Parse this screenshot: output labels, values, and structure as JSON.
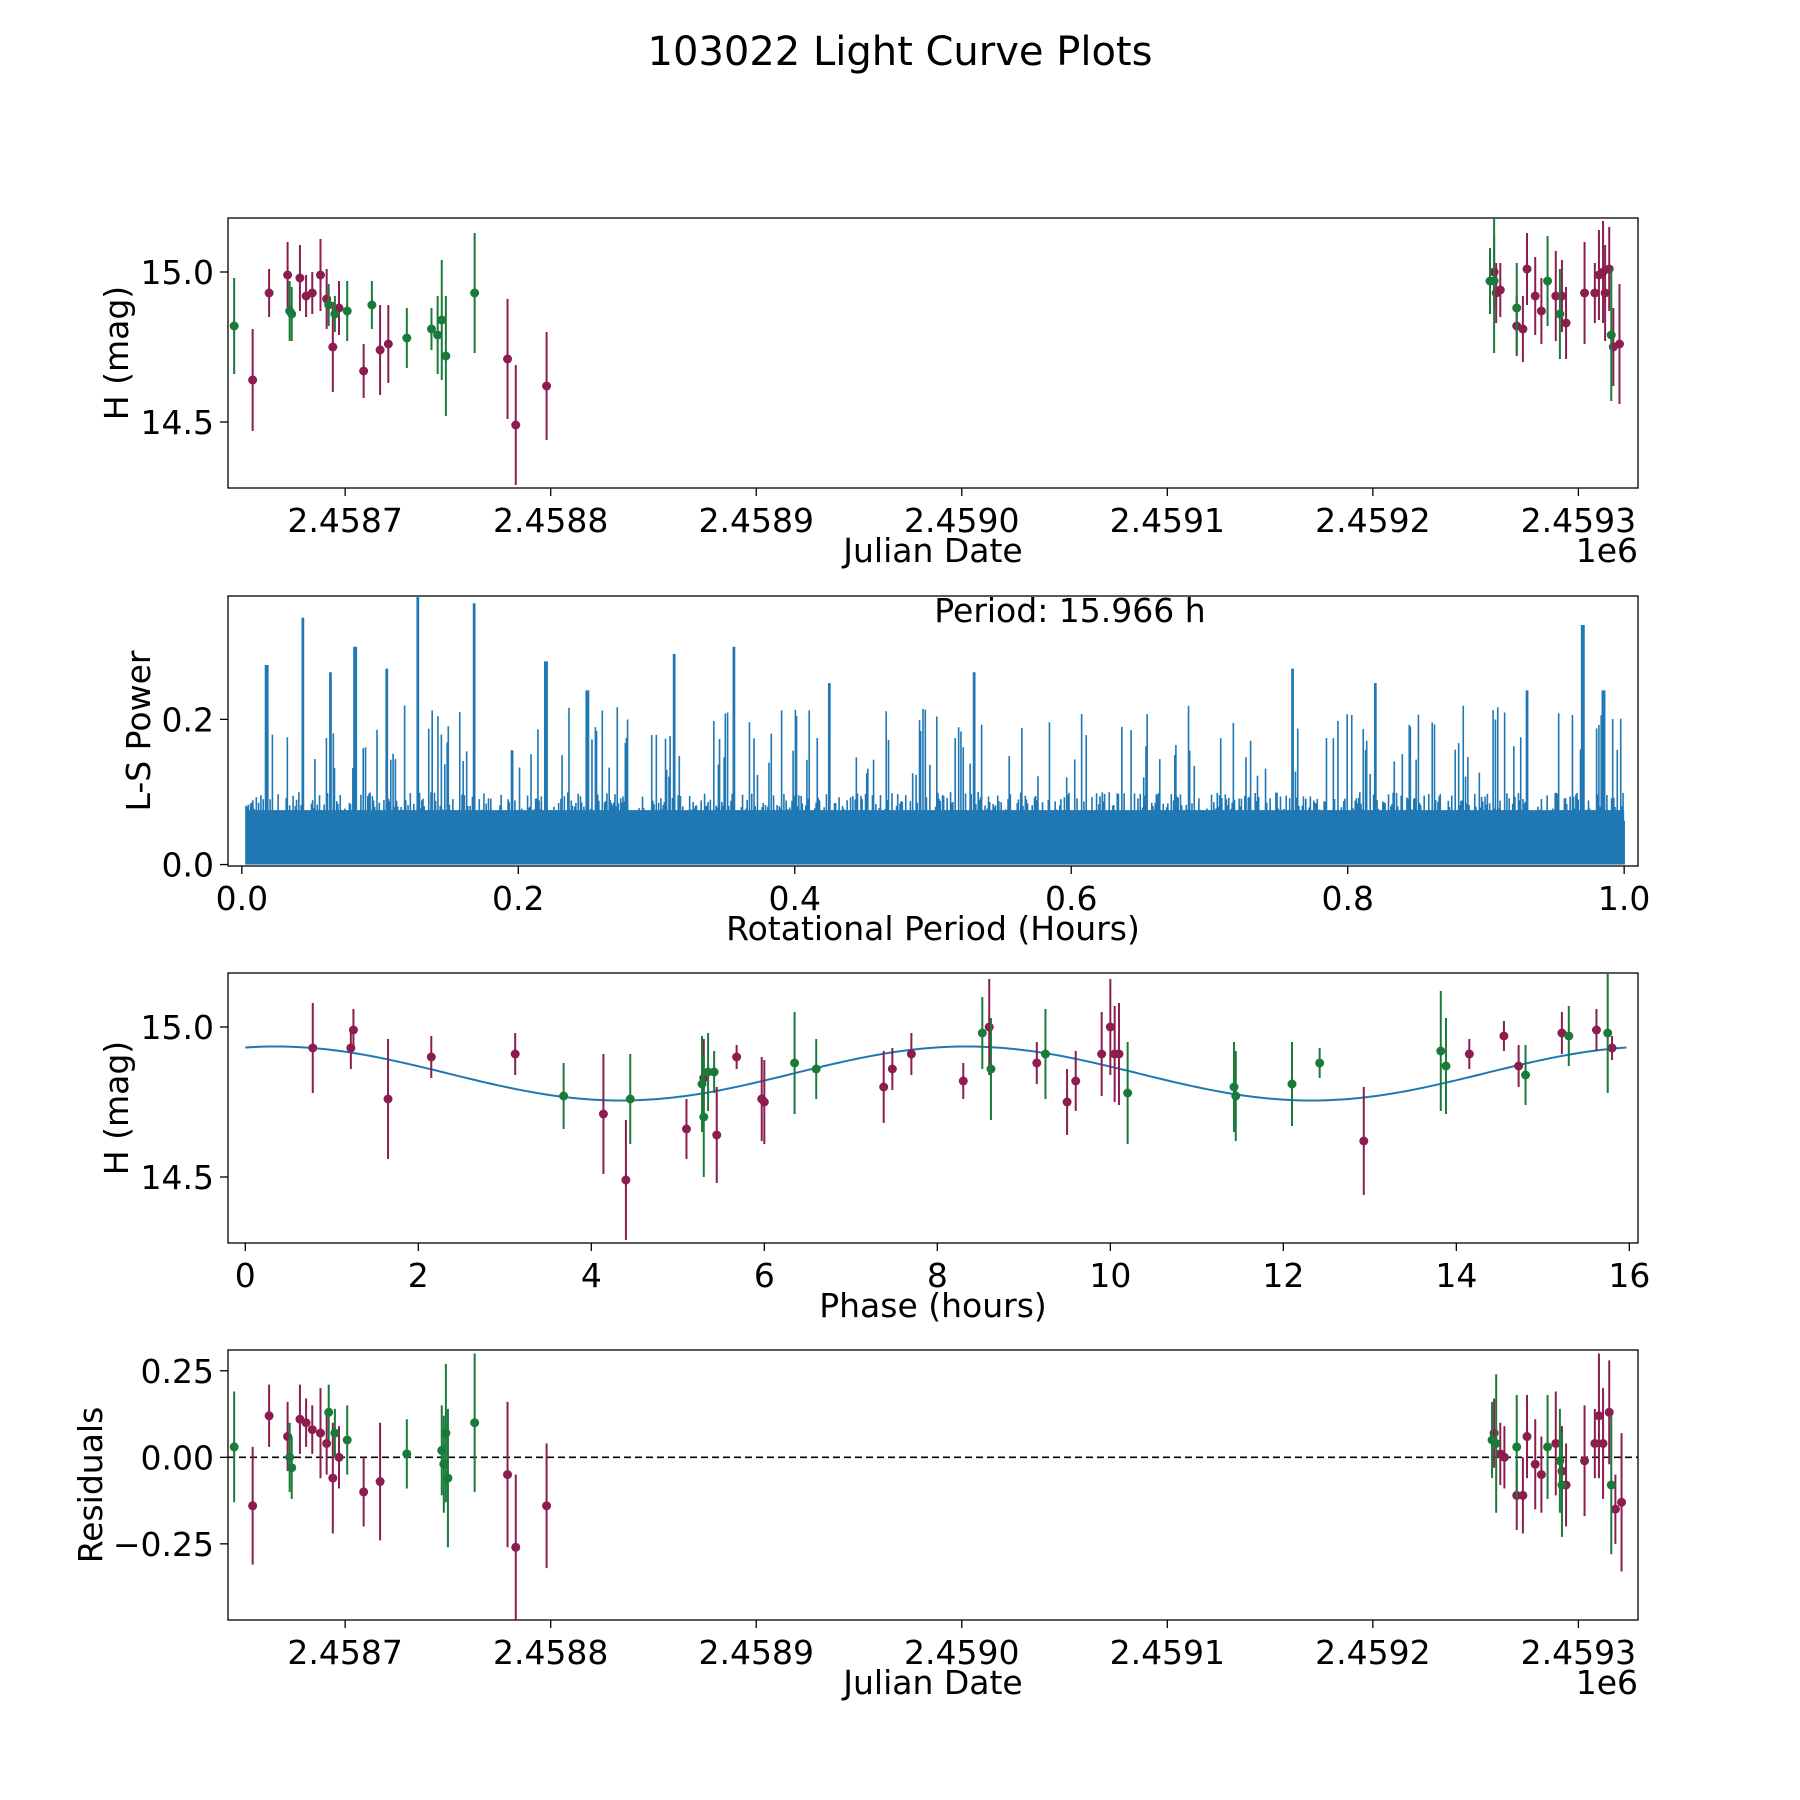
{
  "figure": {
    "title": "103022 Light Curve Plots",
    "colors": {
      "purple": "#8b1d4f",
      "green": "#1a7a3a",
      "blue": "#1f77b4",
      "dashed": "#000000"
    }
  },
  "chart_data": [
    {
      "id": "lightcurve",
      "type": "scatter",
      "xlabel": "Julian Date",
      "ylabel": "H (mag)",
      "x_offset_label": "1e6",
      "xlim": [
        2.458643,
        2.459329
      ],
      "ylim": [
        14.28,
        15.18
      ],
      "xticks": [
        2.4587,
        2.4588,
        2.4589,
        2.459,
        2.4591,
        2.4592,
        2.4593
      ],
      "xtick_labels": [
        "2.4587",
        "2.4588",
        "2.4589",
        "2.4590",
        "2.4591",
        "2.4592",
        "2.4593"
      ],
      "yticks": [
        14.5,
        15.0
      ],
      "ytick_labels": [
        "14.5",
        "15.0"
      ],
      "series": [
        {
          "name": "purple",
          "color": "#8b1d4f",
          "points": [
            [
              2.458655,
              14.64,
              0.17
            ],
            [
              2.458663,
              14.93,
              0.08
            ],
            [
              2.458672,
              14.99,
              0.11
            ],
            [
              2.458678,
              14.98,
              0.11
            ],
            [
              2.458681,
              14.92,
              0.07
            ],
            [
              2.458684,
              14.93,
              0.07
            ],
            [
              2.458688,
              14.99,
              0.12
            ],
            [
              2.458691,
              14.91,
              0.1
            ],
            [
              2.458694,
              14.75,
              0.15
            ],
            [
              2.458697,
              14.88,
              0.09
            ],
            [
              2.458709,
              14.67,
              0.09
            ],
            [
              2.458717,
              14.74,
              0.15
            ],
            [
              2.458721,
              14.76,
              0.13
            ],
            [
              2.458779,
              14.71,
              0.2
            ],
            [
              2.458783,
              14.49,
              0.2
            ],
            [
              2.458798,
              14.62,
              0.18
            ],
            [
              2.459259,
              15.0,
              0.12
            ],
            [
              2.45926,
              14.93,
              0.1
            ],
            [
              2.459262,
              14.94,
              0.09
            ],
            [
              2.45927,
              14.82,
              0.1
            ],
            [
              2.459273,
              14.81,
              0.11
            ],
            [
              2.459275,
              15.01,
              0.12
            ],
            [
              2.459279,
              14.92,
              0.13
            ],
            [
              2.459282,
              14.87,
              0.11
            ],
            [
              2.459289,
              14.92,
              0.15
            ],
            [
              2.459292,
              14.92,
              0.12
            ],
            [
              2.459294,
              14.83,
              0.12
            ],
            [
              2.459303,
              14.93,
              0.17
            ],
            [
              2.459308,
              14.93,
              0.1
            ],
            [
              2.45931,
              14.99,
              0.15
            ],
            [
              2.459312,
              15.0,
              0.17
            ],
            [
              2.459313,
              14.93,
              0.16
            ],
            [
              2.459315,
              15.01,
              0.14
            ],
            [
              2.459317,
              14.75,
              0.13
            ],
            [
              2.45932,
              14.76,
              0.2
            ]
          ]
        },
        {
          "name": "green",
          "color": "#1a7a3a",
          "points": [
            [
              2.458646,
              14.82,
              0.16
            ],
            [
              2.458673,
              14.87,
              0.1
            ],
            [
              2.458674,
              14.86,
              0.09
            ],
            [
              2.458692,
              14.89,
              0.07
            ],
            [
              2.458695,
              14.86,
              0.06
            ],
            [
              2.458701,
              14.87,
              0.1
            ],
            [
              2.458713,
              14.89,
              0.08
            ],
            [
              2.45873,
              14.78,
              0.1
            ],
            [
              2.458742,
              14.81,
              0.07
            ],
            [
              2.458745,
              14.79,
              0.13
            ],
            [
              2.458747,
              14.84,
              0.2
            ],
            [
              2.458749,
              14.72,
              0.2
            ],
            [
              2.458763,
              14.93,
              0.2
            ],
            [
              2.459257,
              14.97,
              0.11
            ],
            [
              2.459259,
              14.97,
              0.24
            ],
            [
              2.45927,
              14.88,
              0.15
            ],
            [
              2.459285,
              14.97,
              0.15
            ],
            [
              2.459291,
              14.86,
              0.15
            ],
            [
              2.459316,
              14.79,
              0.22
            ]
          ]
        }
      ]
    },
    {
      "id": "periodogram",
      "type": "line",
      "xlabel": "Rotational Period (Hours)",
      "ylabel": "L-S Power",
      "annotation": "Period: 15.966 h",
      "xlim": [
        -0.01,
        1.01
      ],
      "ylim": [
        -0.002,
        0.37
      ],
      "xticks": [
        0.0,
        0.2,
        0.4,
        0.6,
        0.8,
        1.0
      ],
      "xtick_labels": [
        "0.0",
        "0.2",
        "0.4",
        "0.6",
        "0.8",
        "1.0"
      ],
      "yticks": [
        0.0,
        0.2
      ],
      "ytick_labels": [
        "0.0",
        "0.2"
      ],
      "noise_floor": 0.1,
      "peaks": [
        [
          0.002,
          0.255
        ],
        [
          0.018,
          0.275
        ],
        [
          0.044,
          0.34
        ],
        [
          0.064,
          0.265
        ],
        [
          0.082,
          0.3
        ],
        [
          0.105,
          0.27
        ],
        [
          0.127,
          0.37
        ],
        [
          0.168,
          0.36
        ],
        [
          0.22,
          0.28
        ],
        [
          0.25,
          0.24
        ],
        [
          0.313,
          0.29
        ],
        [
          0.356,
          0.3
        ],
        [
          0.425,
          0.25
        ],
        [
          0.53,
          0.265
        ],
        [
          0.76,
          0.27
        ],
        [
          0.82,
          0.25
        ],
        [
          0.93,
          0.24
        ],
        [
          0.97,
          0.33
        ],
        [
          0.985,
          0.24
        ]
      ],
      "n_samples": 1200
    },
    {
      "id": "phased",
      "type": "scatter",
      "xlabel": "Phase (hours)",
      "ylabel": "H (mag)",
      "xlim": [
        -0.2,
        16.1
      ],
      "ylim": [
        14.28,
        15.18
      ],
      "xticks": [
        0,
        2,
        4,
        6,
        8,
        10,
        12,
        14,
        16
      ],
      "xtick_labels": [
        "0",
        "2",
        "4",
        "6",
        "8",
        "10",
        "12",
        "14",
        "16"
      ],
      "yticks": [
        14.5,
        15.0
      ],
      "ytick_labels": [
        "14.5",
        "15.0"
      ],
      "model": {
        "period": 15.966,
        "mean": 14.845,
        "amplitude": 0.09,
        "peak_phase": 0.35,
        "harmonics": 2
      },
      "series": [
        {
          "name": "purple",
          "color": "#8b1d4f",
          "points": [
            [
              0.78,
              14.93,
              0.15
            ],
            [
              1.22,
              14.93,
              0.07
            ],
            [
              1.25,
              14.99,
              0.07
            ],
            [
              1.65,
              14.76,
              0.2
            ],
            [
              2.15,
              14.9,
              0.07
            ],
            [
              3.12,
              14.91,
              0.07
            ],
            [
              4.14,
              14.71,
              0.2
            ],
            [
              4.4,
              14.49,
              0.2
            ],
            [
              5.1,
              14.66,
              0.1
            ],
            [
              5.3,
              14.83,
              0.13
            ],
            [
              5.45,
              14.64,
              0.16
            ],
            [
              5.68,
              14.9,
              0.04
            ],
            [
              5.97,
              14.76,
              0.14
            ],
            [
              6.0,
              14.75,
              0.14
            ],
            [
              7.38,
              14.8,
              0.12
            ],
            [
              7.48,
              14.86,
              0.07
            ],
            [
              7.7,
              14.91,
              0.07
            ],
            [
              8.3,
              14.82,
              0.06
            ],
            [
              8.6,
              15.0,
              0.16
            ],
            [
              9.15,
              14.88,
              0.07
            ],
            [
              9.5,
              14.75,
              0.11
            ],
            [
              9.6,
              14.82,
              0.1
            ],
            [
              9.9,
              14.91,
              0.14
            ],
            [
              10.0,
              15.0,
              0.16
            ],
            [
              10.05,
              14.91,
              0.16
            ],
            [
              10.1,
              14.91,
              0.17
            ],
            [
              12.93,
              14.62,
              0.18
            ],
            [
              14.15,
              14.91,
              0.05
            ],
            [
              14.55,
              14.97,
              0.05
            ],
            [
              14.72,
              14.87,
              0.07
            ],
            [
              15.22,
              14.98,
              0.07
            ],
            [
              15.62,
              14.99,
              0.07
            ],
            [
              15.8,
              14.93,
              0.04
            ]
          ]
        },
        {
          "name": "green",
          "color": "#1a7a3a",
          "points": [
            [
              3.68,
              14.77,
              0.11
            ],
            [
              4.45,
              14.76,
              0.15
            ],
            [
              5.28,
              14.81,
              0.16
            ],
            [
              5.3,
              14.7,
              0.2
            ],
            [
              5.35,
              14.85,
              0.13
            ],
            [
              5.42,
              14.85,
              0.07
            ],
            [
              6.35,
              14.88,
              0.17
            ],
            [
              6.6,
              14.86,
              0.1
            ],
            [
              8.52,
              14.98,
              0.12
            ],
            [
              8.62,
              14.86,
              0.17
            ],
            [
              9.25,
              14.91,
              0.15
            ],
            [
              10.2,
              14.78,
              0.17
            ],
            [
              11.43,
              14.8,
              0.15
            ],
            [
              11.45,
              14.77,
              0.15
            ],
            [
              12.1,
              14.81,
              0.14
            ],
            [
              12.42,
              14.88,
              0.05
            ],
            [
              13.82,
              14.92,
              0.2
            ],
            [
              13.88,
              14.87,
              0.16
            ],
            [
              14.8,
              14.84,
              0.1
            ],
            [
              15.3,
              14.97,
              0.1
            ],
            [
              15.75,
              14.98,
              0.2
            ]
          ]
        }
      ]
    },
    {
      "id": "residuals",
      "type": "scatter",
      "xlabel": "Julian Date",
      "ylabel": "Residuals",
      "x_offset_label": "1e6",
      "xlim": [
        2.458643,
        2.459329
      ],
      "ylim": [
        -0.47,
        0.31
      ],
      "xticks": [
        2.4587,
        2.4588,
        2.4589,
        2.459,
        2.4591,
        2.4592,
        2.4593
      ],
      "xtick_labels": [
        "2.4587",
        "2.4588",
        "2.4589",
        "2.4590",
        "2.4591",
        "2.4592",
        "2.4593"
      ],
      "yticks": [
        -0.25,
        0.0,
        0.25
      ],
      "ytick_labels": [
        "−0.25",
        "0.00",
        "0.25"
      ],
      "zero_line": 0.0,
      "series": [
        {
          "name": "purple",
          "color": "#8b1d4f",
          "points": [
            [
              2.458655,
              -0.14,
              0.17
            ],
            [
              2.458663,
              0.12,
              0.09
            ],
            [
              2.458672,
              0.06,
              0.1
            ],
            [
              2.458678,
              0.11,
              0.1
            ],
            [
              2.458681,
              0.1,
              0.07
            ],
            [
              2.458684,
              0.08,
              0.07
            ],
            [
              2.458688,
              0.07,
              0.13
            ],
            [
              2.458691,
              0.04,
              0.09
            ],
            [
              2.458694,
              -0.06,
              0.16
            ],
            [
              2.458697,
              0.0,
              0.09
            ],
            [
              2.458709,
              -0.1,
              0.1
            ],
            [
              2.458717,
              -0.07,
              0.17
            ],
            [
              2.458779,
              -0.05,
              0.21
            ],
            [
              2.458783,
              -0.26,
              0.21
            ],
            [
              2.458798,
              -0.14,
              0.18
            ],
            [
              2.459259,
              0.07,
              0.1
            ],
            [
              2.459262,
              0.01,
              0.09
            ],
            [
              2.459264,
              0.0,
              0.09
            ],
            [
              2.45927,
              -0.11,
              0.1
            ],
            [
              2.459273,
              -0.11,
              0.11
            ],
            [
              2.459275,
              0.06,
              0.12
            ],
            [
              2.459279,
              -0.02,
              0.13
            ],
            [
              2.459282,
              -0.05,
              0.11
            ],
            [
              2.459289,
              0.04,
              0.15
            ],
            [
              2.459292,
              -0.04,
              0.13
            ],
            [
              2.459294,
              -0.08,
              0.12
            ],
            [
              2.459303,
              -0.01,
              0.16
            ],
            [
              2.459308,
              0.04,
              0.1
            ],
            [
              2.45931,
              0.12,
              0.18
            ],
            [
              2.459312,
              0.04,
              0.16
            ],
            [
              2.459315,
              0.13,
              0.15
            ],
            [
              2.459318,
              -0.15,
              0.1
            ],
            [
              2.459321,
              -0.13,
              0.2
            ]
          ]
        },
        {
          "name": "green",
          "color": "#1a7a3a",
          "points": [
            [
              2.458646,
              0.03,
              0.16
            ],
            [
              2.458673,
              0.0,
              0.1
            ],
            [
              2.458674,
              -0.03,
              0.09
            ],
            [
              2.458692,
              0.13,
              0.08
            ],
            [
              2.458695,
              0.07,
              0.07
            ],
            [
              2.458701,
              0.05,
              0.1
            ],
            [
              2.45873,
              0.01,
              0.1
            ],
            [
              2.458747,
              0.02,
              0.13
            ],
            [
              2.458748,
              -0.02,
              0.14
            ],
            [
              2.458749,
              0.07,
              0.2
            ],
            [
              2.45875,
              -0.06,
              0.2
            ],
            [
              2.458763,
              0.1,
              0.2
            ],
            [
              2.459258,
              0.05,
              0.11
            ],
            [
              2.45926,
              0.04,
              0.2
            ],
            [
              2.45927,
              0.03,
              0.15
            ],
            [
              2.459285,
              0.03,
              0.15
            ],
            [
              2.459291,
              -0.01,
              0.15
            ],
            [
              2.459292,
              -0.08,
              0.15
            ],
            [
              2.459316,
              -0.08,
              0.2
            ]
          ]
        }
      ]
    }
  ]
}
